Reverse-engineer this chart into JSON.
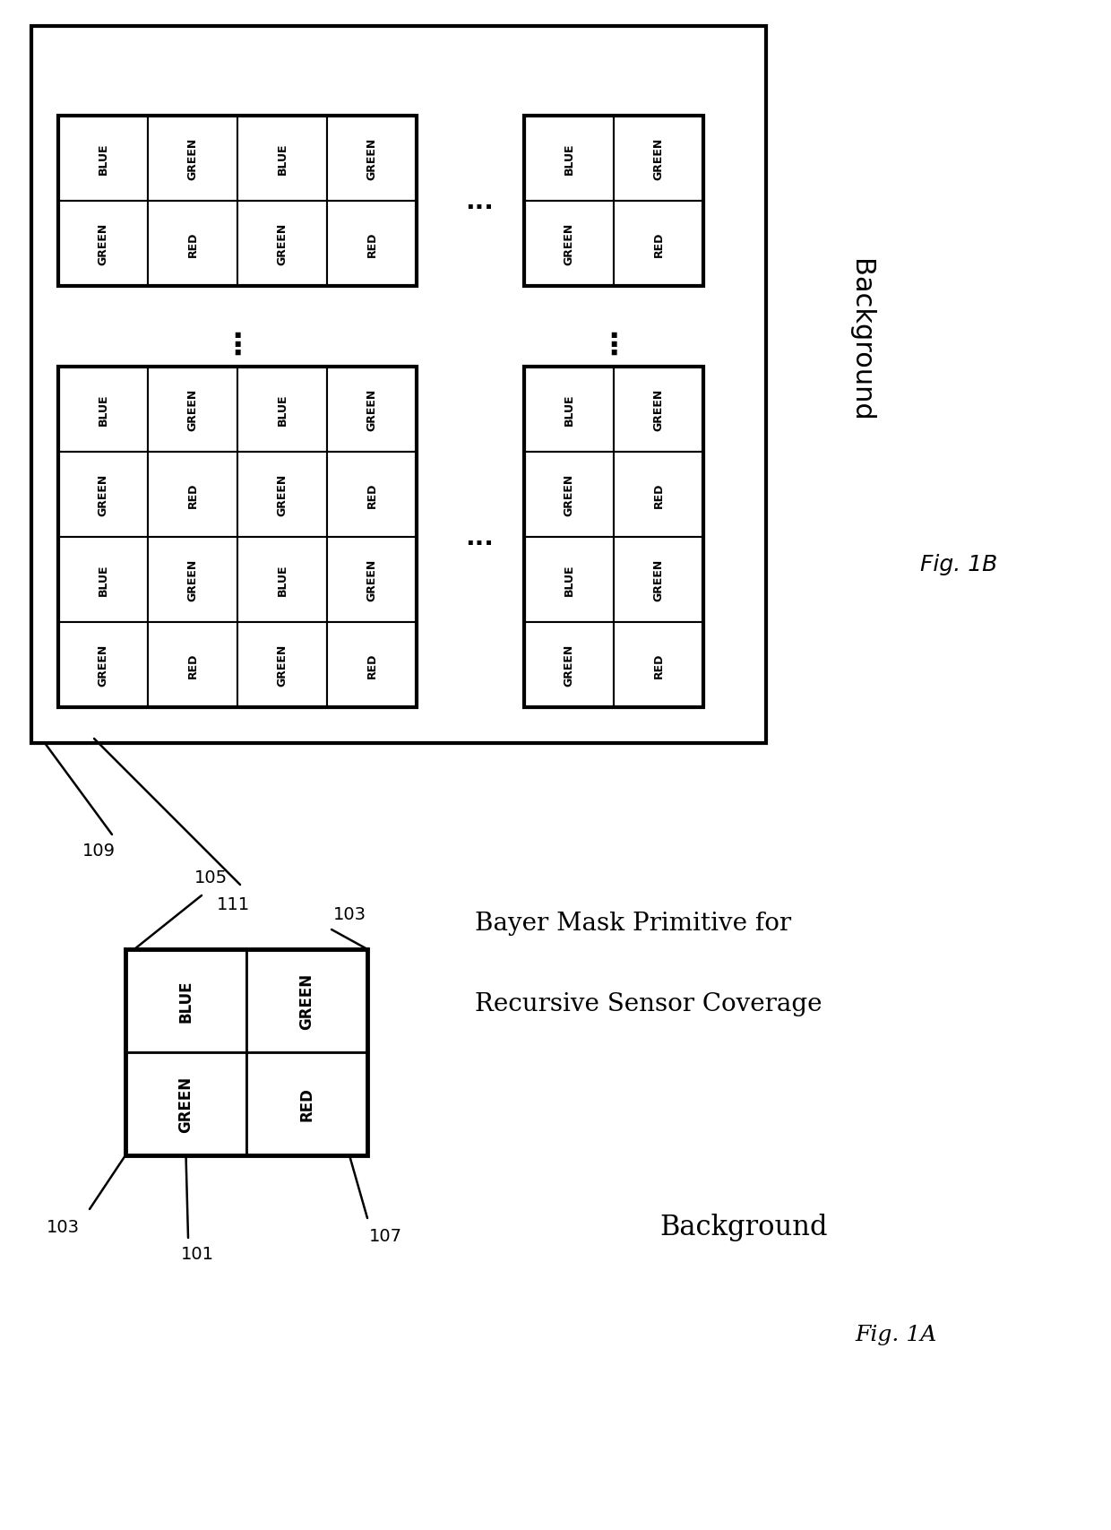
{
  "bg_color": "#ffffff",
  "cell_text_color": "#000000",
  "border_color": "#000000",
  "fig_label_1a": "Fig. 1A",
  "fig_label_1b": "Fig. 1B",
  "background_text": "Background",
  "title_1a_line1": "Bayer Mask Primitive for",
  "title_1a_line2": "Recursive Sensor Coverage",
  "bayer_pattern": [
    [
      "BLUE",
      "GREEN"
    ],
    [
      "GREEN",
      "RED"
    ]
  ],
  "label_109": "109",
  "label_111": "111",
  "label_105": "105",
  "label_103a": "103",
  "label_103b": "103",
  "label_103c": "103",
  "label_107": "107",
  "label_101": "101",
  "cell_fontsize": 9,
  "label_fontsize": 14,
  "title_fontsize": 20,
  "bg_label_fontsize": 22,
  "fig_label_fontsize": 18
}
